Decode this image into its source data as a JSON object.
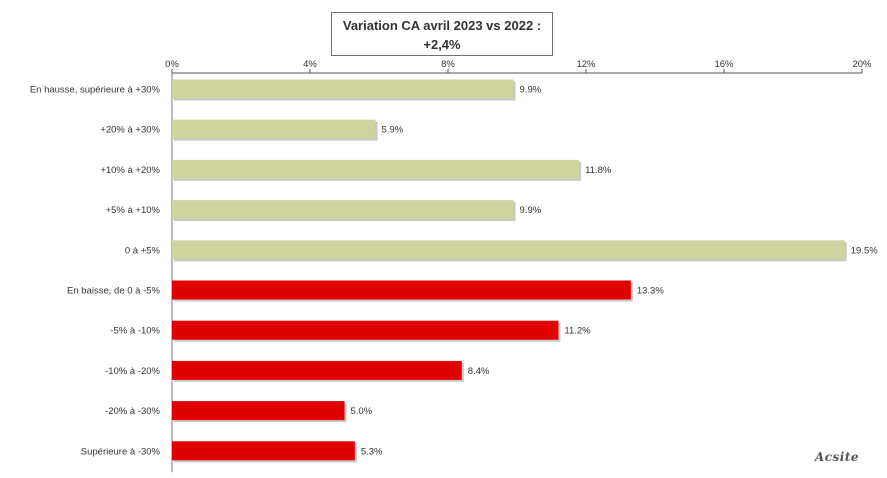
{
  "chart_data": {
    "type": "bar",
    "orientation": "horizontal",
    "title": "Variation CA avril 2023 vs 2022 : +2,4%",
    "title_lines": [
      "Variation CA avril 2023 vs 2022 :",
      "+2,4%"
    ],
    "categories": [
      "En hausse, supérieure à +30%",
      "+20% à +30%",
      "+10% à +20%",
      "+5% à +10%",
      "0 à +5%",
      "En baisse, de 0 à -5%",
      "-5% à -10%",
      "-10% à -20%",
      "-20% à -30%",
      "Supérieure à -30%"
    ],
    "values": [
      9.9,
      5.9,
      11.8,
      9.9,
      19.5,
      13.3,
      11.2,
      8.4,
      5.0,
      5.3
    ],
    "value_labels": [
      "9.9%",
      "5.9%",
      "11.8%",
      "9.9%",
      "19.5%",
      "13.3%",
      "11.2%",
      "8.4%",
      "5.0%",
      "5.3%"
    ],
    "bar_colors": [
      "#cfd3a0",
      "#cfd3a0",
      "#cfd3a0",
      "#cfd3a0",
      "#cfd3a0",
      "#e00000",
      "#e00000",
      "#e00000",
      "#e00000",
      "#e00000"
    ],
    "xlim": [
      0,
      20
    ],
    "xticks": [
      0,
      4,
      8,
      12,
      16,
      20
    ],
    "xtick_labels": [
      "0%",
      "4%",
      "8%",
      "12%",
      "16%",
      "20%"
    ],
    "axis_position": "top",
    "grid": false,
    "legend": "none"
  },
  "branding": {
    "logo_text": "Acsite"
  }
}
